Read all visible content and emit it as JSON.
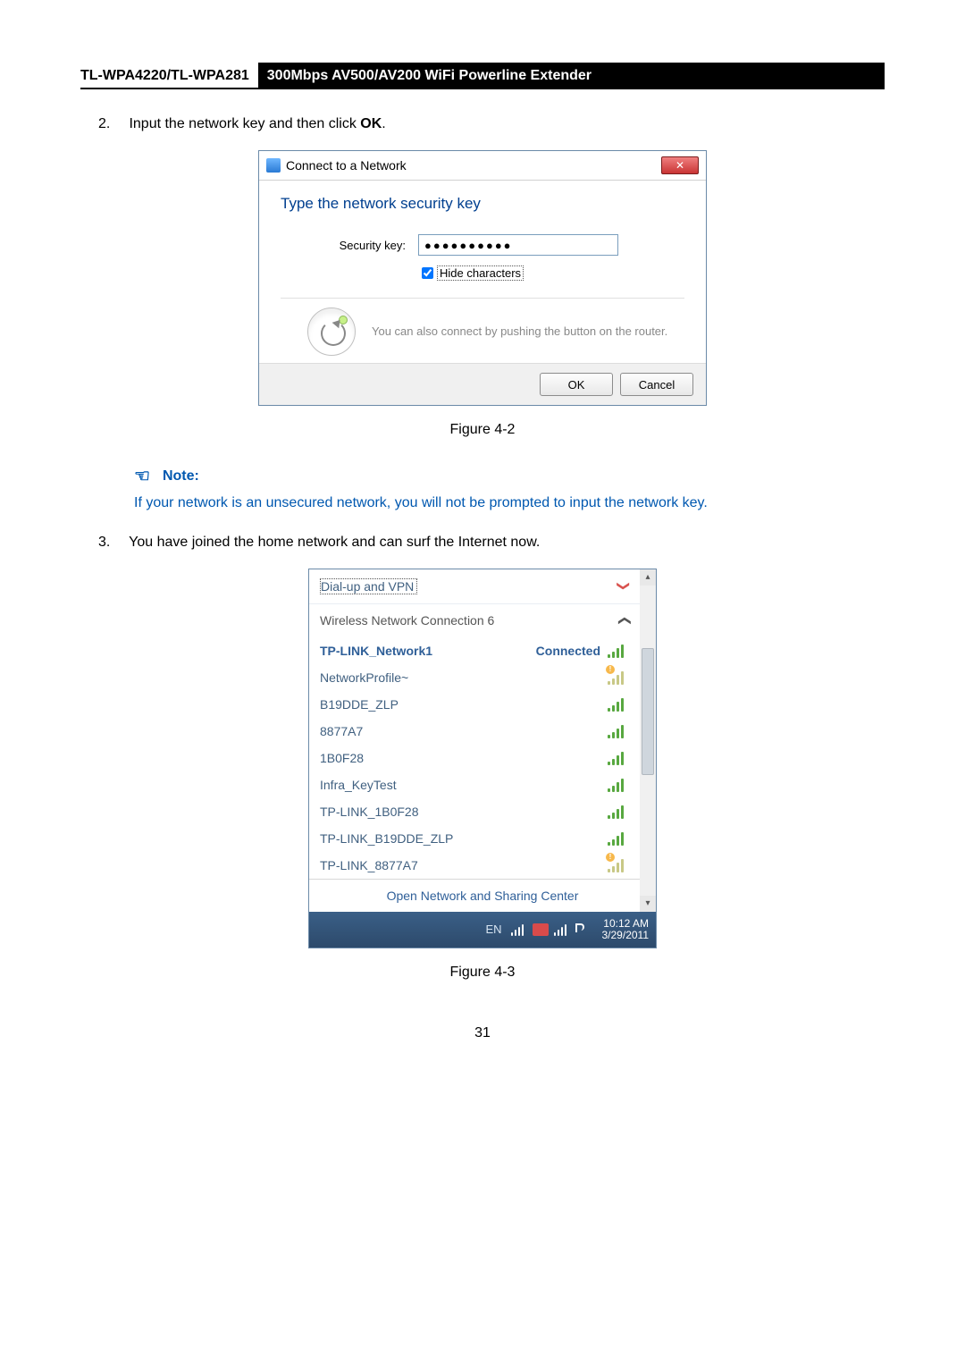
{
  "page_number": "31",
  "header": {
    "model": "TL-WPA4220/TL-WPA281",
    "product": "300Mbps AV500/AV200 WiFi Powerline Extender"
  },
  "steps": {
    "s2_num": "2.",
    "s2_pre": "Input the network key and then click ",
    "s2_bold": "OK",
    "s2_post": ".",
    "s3_num": "3.",
    "s3_text": "You have joined the home network and can surf the Internet now."
  },
  "dialog1": {
    "title": "Connect to a Network",
    "heading": "Type the network security key",
    "field_label": "Security key:",
    "field_value": "●●●●●●●●●●",
    "hide_chars": "Hide characters",
    "help_text": "You can also connect by pushing the button on the router.",
    "ok": "OK",
    "cancel": "Cancel",
    "close_x": "✕",
    "fig": "Figure 4-2"
  },
  "note": {
    "heading": "Note:",
    "text": "If your network is an unsecured network, you will not be prompted to input the network key."
  },
  "dialog2": {
    "dialup": "Dial-up and VPN",
    "wnc": "Wireless Network Connection 6",
    "connected_label": "Connected",
    "networks": [
      {
        "name": "TP-LINK_Network1",
        "connected": true,
        "strength": "strong"
      },
      {
        "name": "NetworkProfile~",
        "strength": "excl"
      },
      {
        "name": "B19DDE_ZLP",
        "strength": "strong"
      },
      {
        "name": "8877A7",
        "strength": "strong"
      },
      {
        "name": "1B0F28",
        "strength": "strong"
      },
      {
        "name": "Infra_KeyTest",
        "strength": "strong"
      },
      {
        "name": "TP-LINK_1B0F28",
        "strength": "strong"
      },
      {
        "name": "TP-LINK_B19DDE_ZLP",
        "strength": "strong"
      },
      {
        "name": "TP-LINK_8877A7",
        "strength": "excl"
      }
    ],
    "footer": "Open Network and Sharing Center",
    "lang": "EN",
    "time": "10:12 AM",
    "date": "3/29/2011",
    "fig": "Figure 4-3",
    "chev_down": "❯",
    "chev_up": "❯"
  }
}
